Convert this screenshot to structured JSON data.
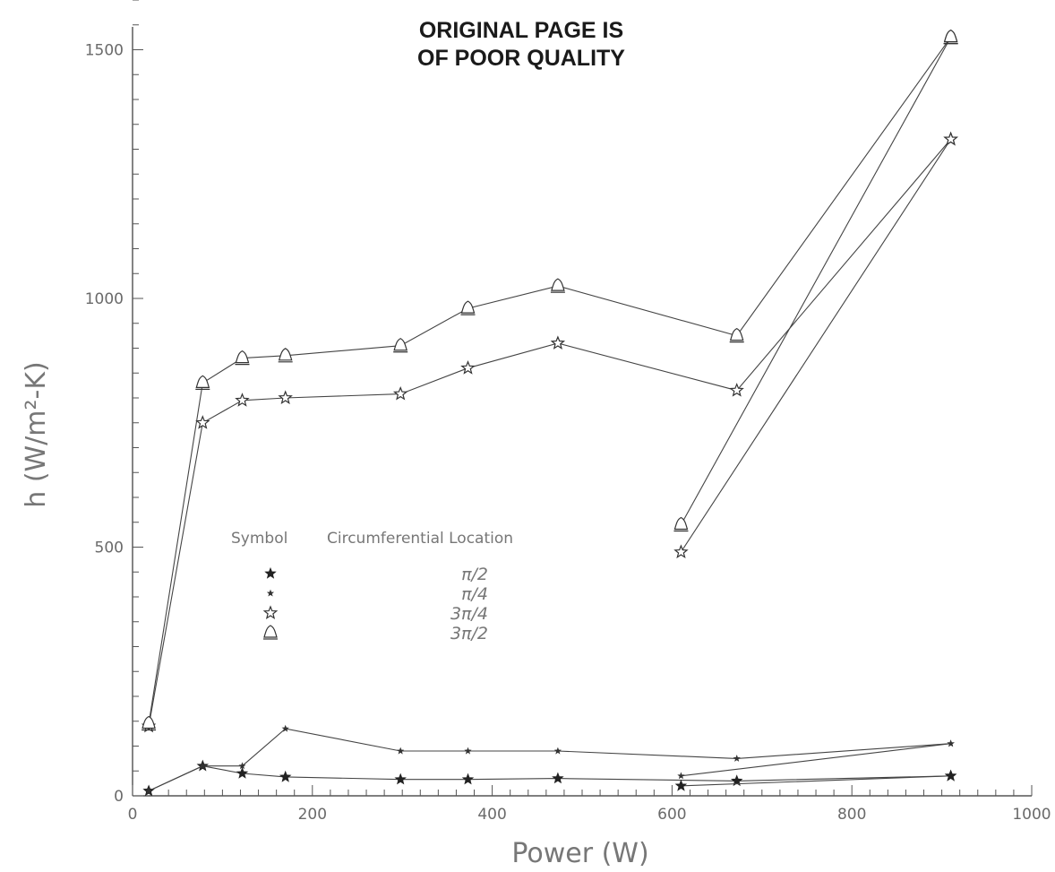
{
  "stamp": {
    "line1": "ORIGINAL PAGE IS",
    "line2": "OF POOR QUALITY"
  },
  "chart_data": {
    "type": "line",
    "title": "",
    "xlabel": "Power (W)",
    "ylabel": "h (W/m²-K)",
    "xlim": [
      0,
      1000
    ],
    "ylim": [
      0,
      1600
    ],
    "x_ticks": [
      0,
      200,
      400,
      600,
      800,
      1000
    ],
    "x_tick_labels": [
      "0",
      "200",
      "400",
      "600",
      "800",
      "1000"
    ],
    "y_ticks": [
      0,
      500,
      1000,
      1500
    ],
    "y_tick_labels": [
      "0",
      "500",
      "1000",
      "1500"
    ],
    "grid": false,
    "legend": {
      "position": "center",
      "header_symbol": "Symbol",
      "header_location": "Circumferential Location",
      "entries": [
        {
          "symbol": "filled-star",
          "location": "π/2"
        },
        {
          "symbol": "small-star",
          "location": "π/4"
        },
        {
          "symbol": "open-star",
          "location": "3π/4"
        },
        {
          "symbol": "open-triangle",
          "location": "3π/2"
        }
      ]
    },
    "series": [
      {
        "symbol": "filled-star",
        "x": [
          18,
          78,
          122,
          170,
          298,
          373,
          473,
          672,
          910
        ],
        "y": [
          10,
          60,
          45,
          38,
          33,
          33,
          35,
          30,
          40
        ]
      },
      {
        "symbol": "small-star",
        "x": [
          18,
          78,
          122,
          170,
          298,
          373,
          473,
          672,
          910
        ],
        "y": [
          10,
          60,
          60,
          135,
          90,
          90,
          90,
          75,
          105
        ]
      },
      {
        "symbol": "open-star",
        "x": [
          18,
          78,
          122,
          170,
          298,
          373,
          473,
          672,
          910
        ],
        "y": [
          140,
          750,
          795,
          800,
          808,
          860,
          910,
          815,
          1320
        ]
      },
      {
        "symbol": "open-triangle",
        "x": [
          18,
          78,
          122,
          170,
          298,
          373,
          473,
          672,
          910
        ],
        "y": [
          145,
          830,
          880,
          885,
          905,
          980,
          1025,
          925,
          1525
        ]
      },
      {
        "symbol": "filled-star",
        "x": [
          610,
          910
        ],
        "y": [
          20,
          40
        ]
      },
      {
        "symbol": "small-star",
        "x": [
          610,
          910
        ],
        "y": [
          40,
          105
        ]
      },
      {
        "symbol": "open-star",
        "x": [
          610,
          910
        ],
        "y": [
          490,
          1320
        ]
      },
      {
        "symbol": "open-triangle",
        "x": [
          610,
          910
        ],
        "y": [
          545,
          1525
        ]
      }
    ]
  }
}
